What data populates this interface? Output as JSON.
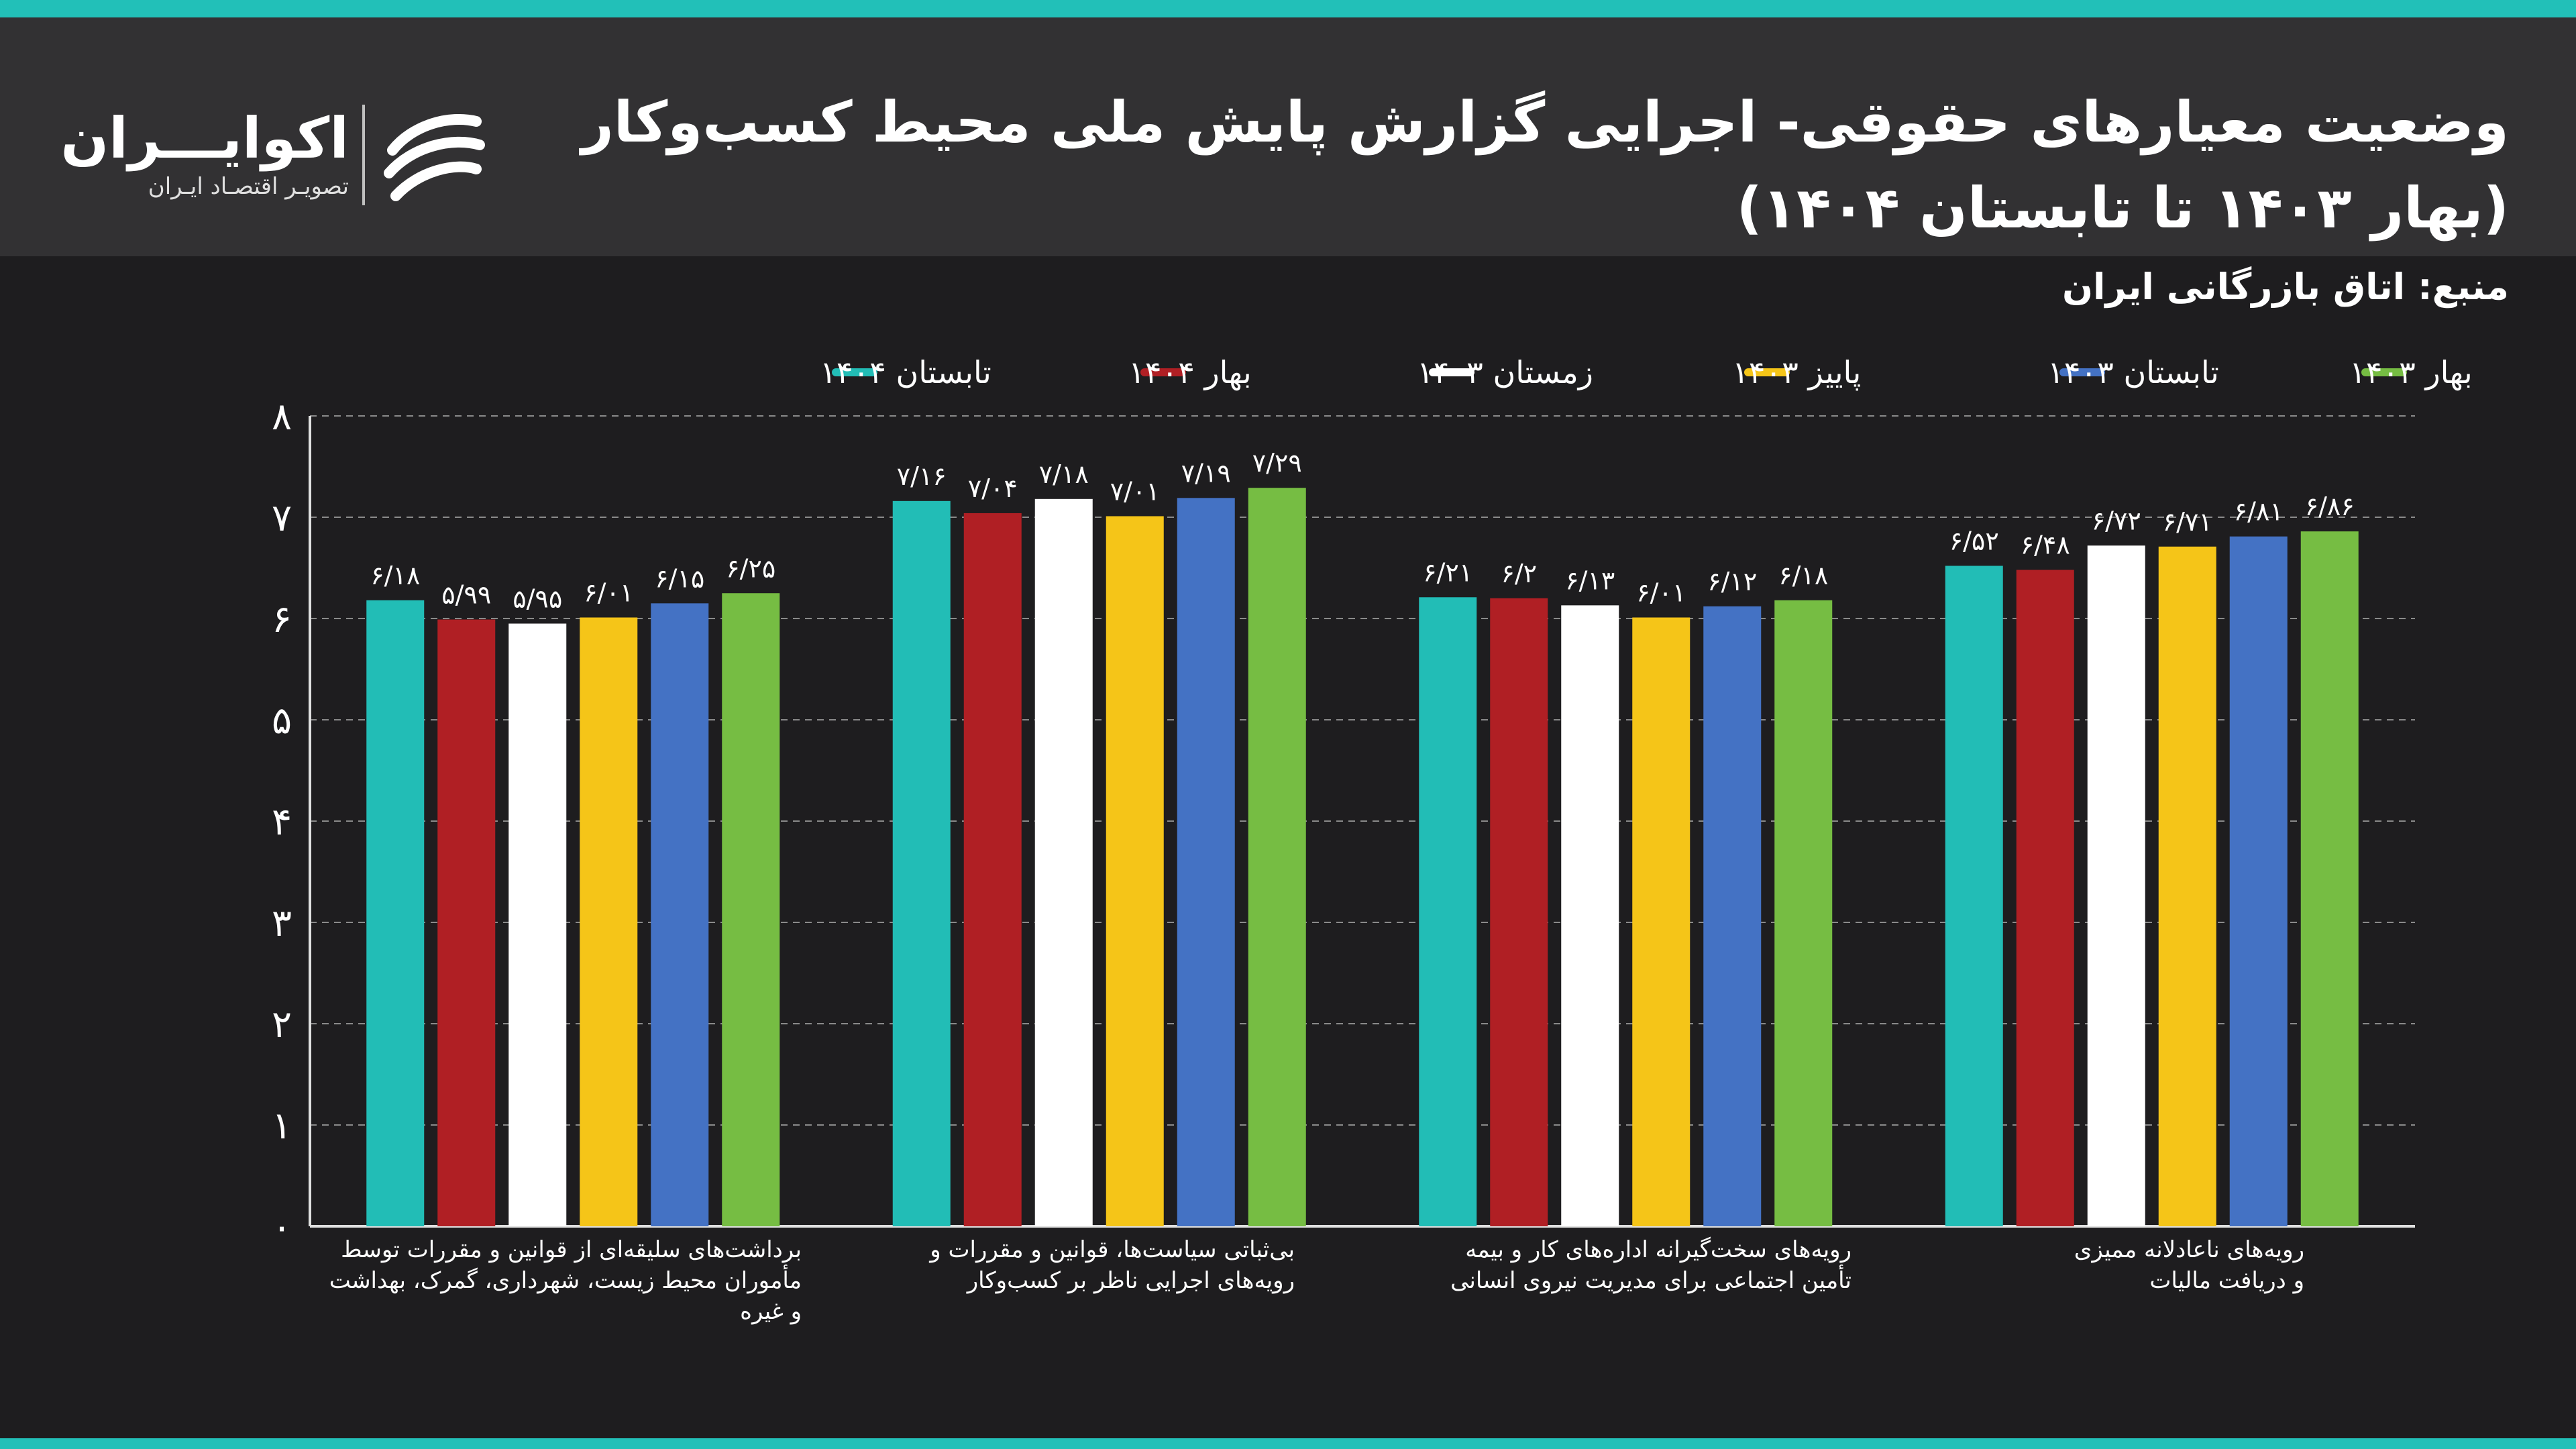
{
  "header": {
    "title": "وضعیت معیارهای حقوقی- اجرایی گزارش پایش ملی محیط کسب‌وکار (بهار ۱۴۰۳ تا تابستان ۱۴۰۴)",
    "source": "منبع: اتاق بازرگانی ایران"
  },
  "logo": {
    "name": "اکوایـــران",
    "tagline": "تصویـر اقتصـاد ایـران",
    "mark_icon": "ecoiran-swoosh-icon"
  },
  "colors": {
    "background": "#1e1d1f",
    "header": "#323133",
    "accent": "#22c0b8",
    "grid": "#8a8a8a"
  },
  "chart_data": {
    "type": "bar",
    "title": "وضعیت معیارهای حقوقی- اجرایی گزارش پایش ملی محیط کسب‌وکار (بهار ۱۴۰۳ تا تابستان ۱۴۰۴)",
    "ylim": [
      0,
      8
    ],
    "yticks": [
      "۰",
      "۱",
      "۲",
      "۳",
      "۴",
      "۵",
      "۶",
      "۷",
      "۸"
    ],
    "grid": true,
    "legend_position": "top",
    "legend_order": [
      5,
      4,
      3,
      2,
      1,
      0
    ],
    "categories": [
      "برداشت‌های سلیقه‌ای از قوانین و مقررات توسط مأموران محیط زیست، شهرداری، گمرک، بهداشت و غیره",
      "بی‌ثباتی سیاست‌ها، قوانین و مقررات و رویه‌های اجرایی ناظر بر کسب‌وکار",
      "رویه‌های سخت‌گیرانه اداره‌های کار و بیمه تأمین اجتماعی برای مدیریت نیروی انسانی",
      "رویه‌های ناعادلانه ممیزی و دریافت مالیات"
    ],
    "category_lines": [
      [
        "برداشت‌های سلیقه‌ای از قوانین و مقررات توسط",
        "مأموران محیط زیست، شهرداری، گمرک، بهداشت",
        "و غیره"
      ],
      [
        "بی‌ثباتی سیاست‌ها، قوانین و مقررات و",
        "رویه‌های اجرایی ناظر بر کسب‌وکار"
      ],
      [
        "رویه‌های سخت‌گیرانه اداره‌های کار و بیمه",
        "تأمین اجتماعی برای مدیریت نیروی انسانی"
      ],
      [
        "رویه‌های ناعادلانه ممیزی",
        "و دریافت مالیات"
      ]
    ],
    "series": [
      {
        "name": "تابستان ۱۴۰۴",
        "color": "#22bdb6",
        "values": [
          6.18,
          7.16,
          6.21,
          6.52
        ],
        "labels": [
          "۶/۱۸",
          "۷/۱۶",
          "۶/۲۱",
          "۶/۵۲"
        ]
      },
      {
        "name": "بهار ۱۴۰۴",
        "color": "#b01f24",
        "values": [
          5.99,
          7.04,
          6.2,
          6.48
        ],
        "labels": [
          "۵/۹۹",
          "۷/۰۴",
          "۶/۲",
          "۶/۴۸"
        ]
      },
      {
        "name": "زمستان ۱۴۰۳",
        "color": "#ffffff",
        "values": [
          5.95,
          7.18,
          6.13,
          6.72
        ],
        "labels": [
          "۵/۹۵",
          "۷/۱۸",
          "۶/۱۳",
          "۶/۷۲"
        ]
      },
      {
        "name": "پاییز ۱۴۰۳",
        "color": "#f5c518",
        "values": [
          6.01,
          7.01,
          6.01,
          6.71
        ],
        "labels": [
          "۶/۰۱",
          "۷/۰۱",
          "۶/۰۱",
          "۶/۷۱"
        ]
      },
      {
        "name": "تابستان ۱۴۰۳",
        "color": "#4472c4",
        "values": [
          6.15,
          7.19,
          6.12,
          6.81
        ],
        "labels": [
          "۶/۱۵",
          "۷/۱۹",
          "۶/۱۲",
          "۶/۸۱"
        ]
      },
      {
        "name": "بهار ۱۴۰۳",
        "color": "#76bd43",
        "values": [
          6.25,
          7.29,
          6.18,
          6.86
        ],
        "labels": [
          "۶/۲۵",
          "۷/۲۹",
          "۶/۱۸",
          "۶/۸۶"
        ]
      }
    ]
  }
}
